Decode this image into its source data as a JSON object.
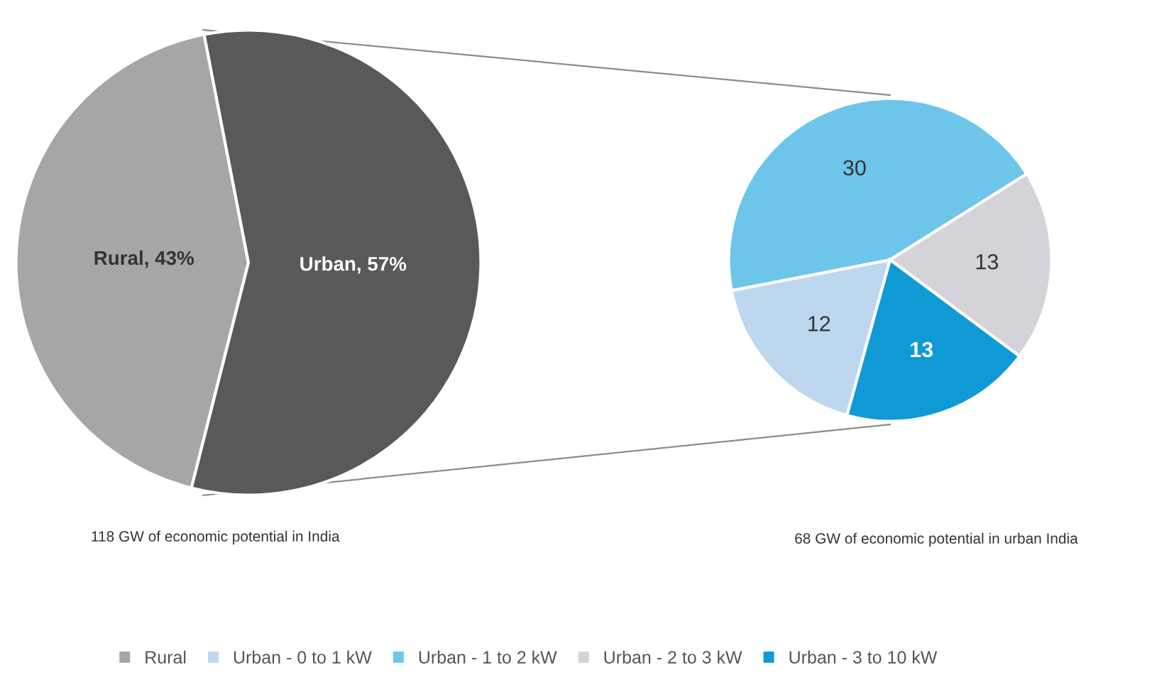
{
  "chart_data": [
    {
      "type": "pie",
      "categories": [
        "Rural",
        null
      ],
      "values": [
        43,
        57
      ],
      "colors": [
        "#a6a6a6",
        "#595959"
      ],
      "value_labels": [
        "Rural, 43%",
        "Urban, 57%"
      ],
      "legend": "bottom",
      "annotations": [
        "118 GW of economic potential in India"
      ]
    },
    {
      "type": "pie",
      "categories": [
        "Urban - 0 to 1 kW",
        "Urban - 1 to 2 kW",
        "Urban - 2 to 3 kW",
        "Urban - 3 to 10 kW"
      ],
      "values": [
        12,
        30,
        13,
        13
      ],
      "colors": [
        "#bdd7ee",
        "#6dc5ea",
        "#d3d3d9",
        "#0f9ad6"
      ],
      "data_labels": true,
      "legend": "bottom",
      "annotations": [
        "68 GW of economic potential in urban India"
      ]
    }
  ]
}
